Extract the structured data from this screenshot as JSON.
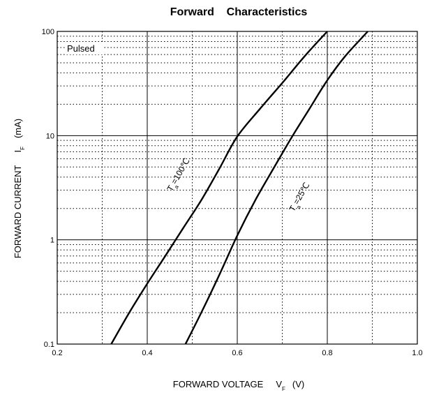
{
  "chart_data": {
    "type": "line",
    "title": "Forward    Characteristics",
    "xlabel": {
      "main": "FORWARD VOLTAGE",
      "symbol": "V",
      "subscript": "F",
      "unit": "(V)"
    },
    "ylabel": {
      "main": "FORWARD CURRENT",
      "symbol": "I",
      "subscript": "F",
      "unit": "(mA)"
    },
    "xlim": [
      0.2,
      1.0
    ],
    "ylim": [
      0.1,
      100
    ],
    "yscale": "log",
    "x_major_ticks": [
      0.2,
      0.4,
      0.6,
      0.8,
      1.0
    ],
    "x_tick_labels": [
      "0.2",
      "0.4",
      "0.6",
      "0.8",
      "1.0"
    ],
    "x_minor_ticks": [
      0.3,
      0.5,
      0.7,
      0.9
    ],
    "y_major_ticks": [
      0.1,
      1,
      10,
      100
    ],
    "y_tick_labels": [
      "0.1",
      "1",
      "10",
      "100"
    ],
    "grid": {
      "major": "solid",
      "minor": "dotted"
    },
    "annotation": "Pulsed",
    "series": [
      {
        "name": "Ta=100℃",
        "label": {
          "T": "T",
          "sub": "a",
          "rest": "=100℃"
        },
        "x": [
          0.32,
          0.36,
          0.4,
          0.44,
          0.48,
          0.52,
          0.56,
          0.6,
          0.65,
          0.7,
          0.75,
          0.8
        ],
        "y": [
          0.1,
          0.2,
          0.38,
          0.7,
          1.3,
          2.4,
          4.8,
          9.8,
          18,
          32,
          58,
          100
        ]
      },
      {
        "name": "Ta=25℃",
        "label": {
          "T": "T",
          "sub": "a",
          "rest": "=25℃"
        },
        "x": [
          0.485,
          0.52,
          0.56,
          0.6,
          0.64,
          0.68,
          0.72,
          0.76,
          0.8,
          0.84,
          0.89
        ],
        "y": [
          0.1,
          0.2,
          0.46,
          1.1,
          2.4,
          4.8,
          9.5,
          18,
          34,
          58,
          100
        ]
      }
    ]
  }
}
